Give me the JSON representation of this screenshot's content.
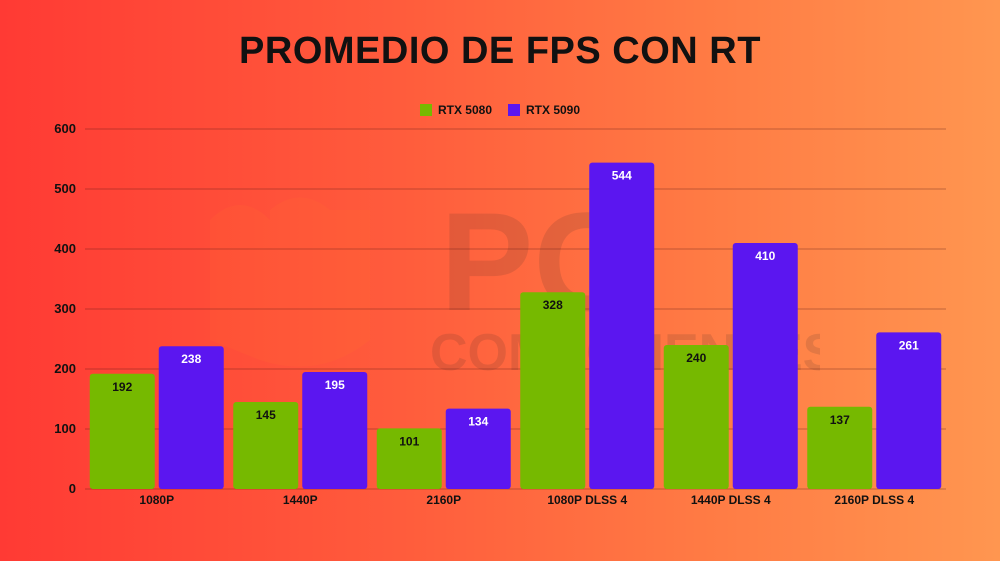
{
  "chart_data": {
    "type": "bar",
    "title": "PROMEDIO DE FPS CON RT",
    "xlabel": "",
    "ylabel": "",
    "ylim": [
      0,
      600
    ],
    "yticks": [
      0,
      100,
      200,
      300,
      400,
      500,
      600
    ],
    "grid": true,
    "legend_position": "top-center",
    "categories": [
      "1080P",
      "1440P",
      "2160P",
      "1080P DLSS 4",
      "1440P DLSS 4",
      "2160P DLSS 4"
    ],
    "series": [
      {
        "name": "RTX 5080",
        "color": "#76b900",
        "label_color": "#111111",
        "values": [
          192,
          145,
          101,
          328,
          240,
          137
        ]
      },
      {
        "name": "RTX 5090",
        "color": "#5b16f0",
        "label_color": "#ffffff",
        "values": [
          238,
          195,
          134,
          544,
          410,
          261
        ]
      }
    ]
  },
  "watermark": {
    "logo_text": "PC",
    "logo_subtext": "COMPONENTES"
  }
}
